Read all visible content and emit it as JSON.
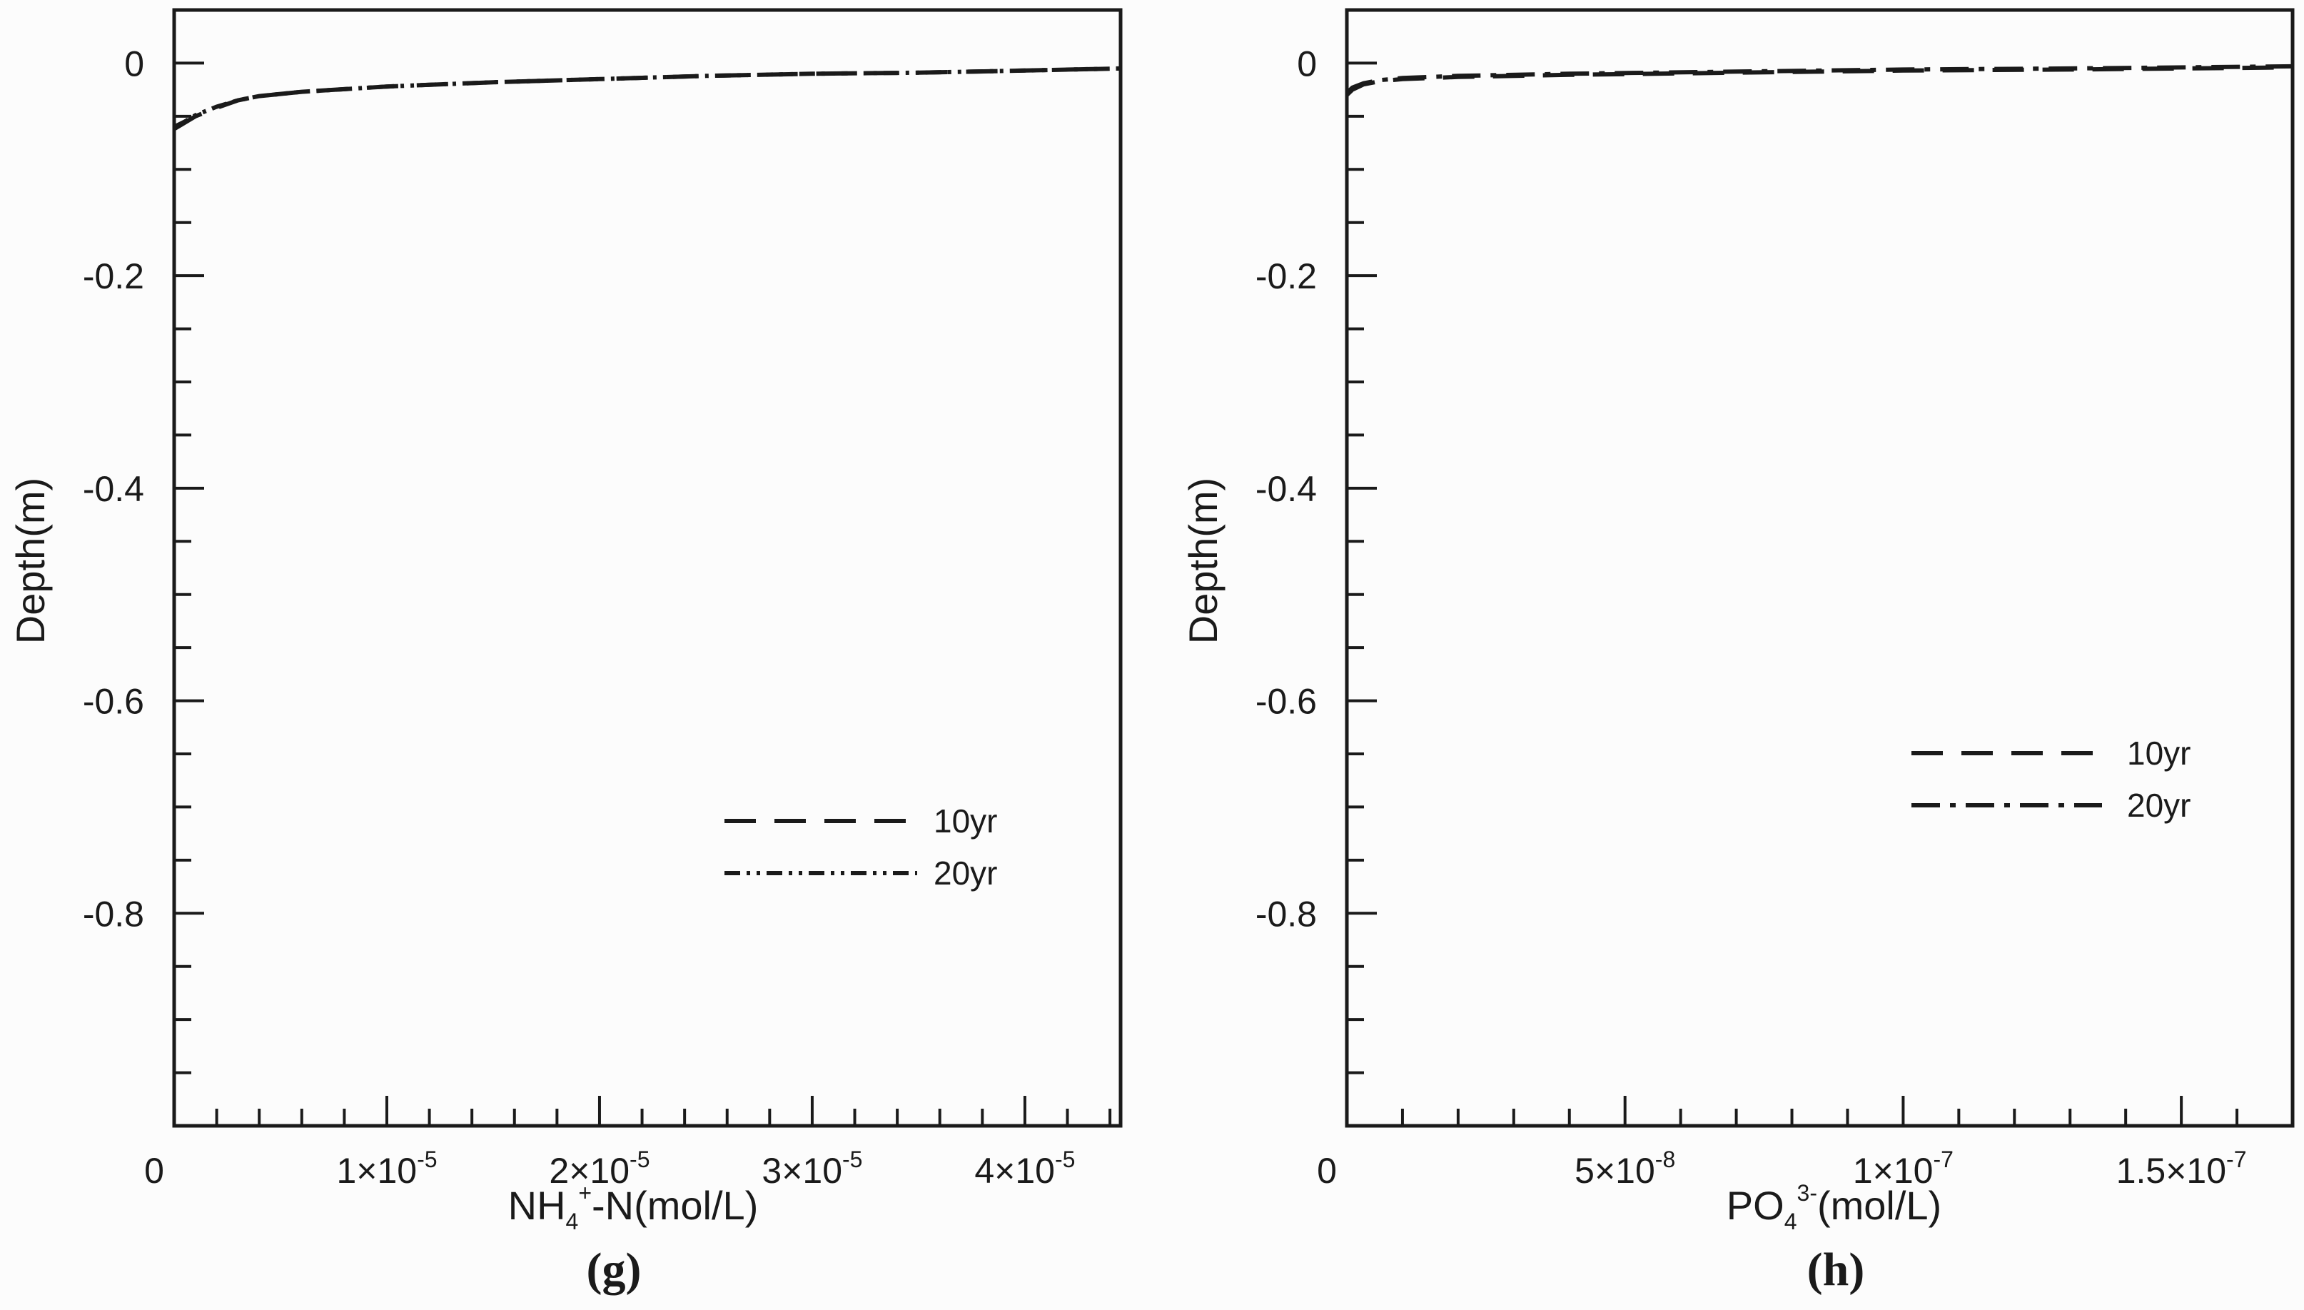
{
  "chart_data": [
    {
      "type": "line",
      "panel_label": "(g)",
      "ylabel": "Depth(m)",
      "xlabel": {
        "base": "NH",
        "sub": "4",
        "sup": "+",
        "rest": "-N(mol/L)"
      },
      "xlim": [
        0,
        4.45e-05
      ],
      "ylim": [
        -1.0,
        0.05
      ],
      "grid": false,
      "legend_position": "lower-right",
      "x_ticks": [
        {
          "value": 0,
          "mant": "0",
          "exp": ""
        },
        {
          "value": 1e-05,
          "mant": "1×10",
          "exp": "-5"
        },
        {
          "value": 2e-05,
          "mant": "2×10",
          "exp": "-5"
        },
        {
          "value": 3e-05,
          "mant": "3×10",
          "exp": "-5"
        },
        {
          "value": 4e-05,
          "mant": "4×10",
          "exp": "-5"
        }
      ],
      "y_ticks": [
        {
          "value": 0,
          "label": "0"
        },
        {
          "value": -0.2,
          "label": "-0.2"
        },
        {
          "value": -0.4,
          "label": "-0.4"
        },
        {
          "value": -0.6,
          "label": "-0.6"
        },
        {
          "value": -0.8,
          "label": "-0.8"
        }
      ],
      "series": [
        {
          "name": "10yr",
          "dash": "dash",
          "x": [
            0,
            5e-07,
            1e-06,
            2e-06,
            3e-06,
            4e-06,
            6e-06,
            1e-05,
            1.5e-05,
            2e-05,
            2.5e-05,
            3e-05,
            3.5e-05,
            4e-05,
            4.45e-05
          ],
          "y": [
            -0.062,
            -0.056,
            -0.05,
            -0.042,
            -0.035,
            -0.031,
            -0.027,
            -0.022,
            -0.018,
            -0.015,
            -0.012,
            -0.01,
            -0.009,
            -0.007,
            -0.005
          ]
        },
        {
          "name": "20yr",
          "dash": "dashdotdot",
          "x": [
            0,
            5e-07,
            1e-06,
            2e-06,
            3e-06,
            4e-06,
            6e-06,
            1e-05,
            1.5e-05,
            2e-05,
            2.5e-05,
            3e-05,
            3.5e-05,
            4e-05,
            4.45e-05
          ],
          "y": [
            -0.06,
            -0.055,
            -0.049,
            -0.041,
            -0.035,
            -0.031,
            -0.027,
            -0.022,
            -0.018,
            -0.015,
            -0.012,
            -0.01,
            -0.009,
            -0.007,
            -0.005
          ]
        }
      ]
    },
    {
      "type": "line",
      "panel_label": "(h)",
      "ylabel": "Depth(m)",
      "xlabel": {
        "base": "PO",
        "sub": "4",
        "sup": "3-",
        "rest": "(mol/L)"
      },
      "xlim": [
        0,
        1.7e-07
      ],
      "ylim": [
        -1.0,
        0.05
      ],
      "grid": false,
      "legend_position": "right",
      "x_ticks": [
        {
          "value": 0,
          "mant": "0",
          "exp": ""
        },
        {
          "value": 5e-08,
          "mant": "5×10",
          "exp": "-8"
        },
        {
          "value": 1e-07,
          "mant": "1×10",
          "exp": "-7"
        },
        {
          "value": 1.5e-07,
          "mant": "1.5×10",
          "exp": "-7"
        }
      ],
      "y_ticks": [
        {
          "value": 0,
          "label": "0"
        },
        {
          "value": -0.2,
          "label": "-0.2"
        },
        {
          "value": -0.4,
          "label": "-0.4"
        },
        {
          "value": -0.6,
          "label": "-0.6"
        },
        {
          "value": -0.8,
          "label": "-0.8"
        }
      ],
      "series": [
        {
          "name": "10yr",
          "dash": "dash",
          "x": [
            0,
            1e-09,
            3e-09,
            6e-09,
            1e-08,
            2e-08,
            4e-08,
            7e-08,
            1e-07,
            1.3e-07,
            1.7e-07
          ],
          "y": [
            -0.03,
            -0.025,
            -0.02,
            -0.017,
            -0.015,
            -0.013,
            -0.011,
            -0.009,
            -0.007,
            -0.006,
            -0.004
          ]
        },
        {
          "name": "20yr",
          "dash": "dashdot",
          "x": [
            0,
            1e-09,
            3e-09,
            6e-09,
            1e-08,
            2e-08,
            4e-08,
            7e-08,
            1e-07,
            1.3e-07,
            1.7e-07
          ],
          "y": [
            -0.028,
            -0.023,
            -0.019,
            -0.016,
            -0.014,
            -0.012,
            -0.01,
            -0.008,
            -0.006,
            -0.005,
            -0.003
          ]
        }
      ]
    }
  ]
}
